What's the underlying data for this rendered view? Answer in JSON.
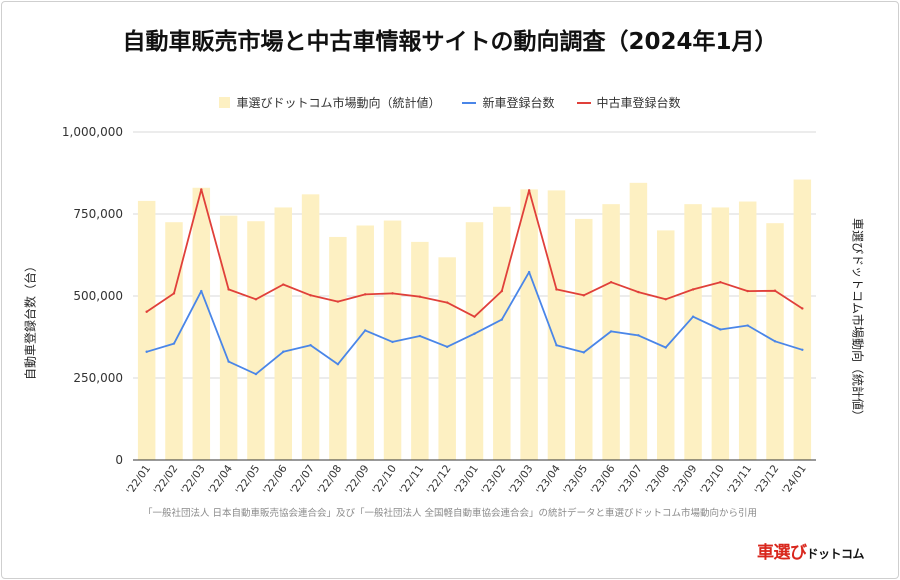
{
  "chart_data": {
    "type": "bar+line",
    "title": "自動車販売市場と中古車情報サイトの動向調査（2024年1月）",
    "categories": [
      "'22/01",
      "'22/02",
      "'22/03",
      "'22/04",
      "'22/05",
      "'22/06",
      "'22/07",
      "'22/08",
      "'22/09",
      "'22/10",
      "'22/11",
      "'22/12",
      "'23/01",
      "'23/02",
      "'23/03",
      "'23/04",
      "'23/05",
      "'23/06",
      "'23/07",
      "'23/08",
      "'23/09",
      "'23/10",
      "'23/11",
      "'23/12",
      "'24/01"
    ],
    "bars": {
      "name": "車選びドットコム市場動向（統計値）",
      "color": "#fdf0c2",
      "values": [
        790000,
        725000,
        830000,
        745000,
        728000,
        770000,
        810000,
        680000,
        715000,
        730000,
        665000,
        618000,
        725000,
        772000,
        825000,
        822000,
        735000,
        780000,
        845000,
        700000,
        780000,
        770000,
        788000,
        722000,
        855000
      ]
    },
    "series": [
      {
        "name": "新車登録台数",
        "color": "#4a86e8",
        "values": [
          330000,
          355000,
          515000,
          300000,
          262000,
          330000,
          350000,
          292000,
          395000,
          360000,
          378000,
          345000,
          385000,
          428000,
          573000,
          350000,
          328000,
          392000,
          380000,
          343000,
          437000,
          398000,
          410000,
          362000,
          336000
        ]
      },
      {
        "name": "中古車登録台数",
        "color": "#e0403a",
        "values": [
          452000,
          508000,
          825000,
          520000,
          490000,
          535000,
          502000,
          483000,
          505000,
          508000,
          498000,
          480000,
          437000,
          515000,
          822000,
          520000,
          502000,
          542000,
          512000,
          490000,
          520000,
          542000,
          515000,
          516000,
          462000
        ]
      }
    ],
    "ylabel": "自動車登録台数（台）",
    "y2label": "車選びドットコム市場動向（統計値）",
    "yticks": [
      "1,000,000",
      "750,000",
      "500,000",
      "250,000",
      "0"
    ],
    "ylim": [
      0,
      1000000
    ],
    "grid": true,
    "legend": "top-center"
  },
  "source_note": "「一般社団法人 日本自動車販売協会連合会」及び「一般社団法人 全国軽自動車協会連合会」の統計データと車選びドットコム市場動向から引用",
  "logo": {
    "part1": "車選び",
    "part2": "ドットコム"
  }
}
